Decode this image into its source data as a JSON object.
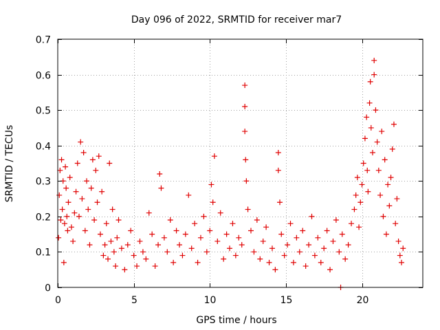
{
  "chart_data": {
    "type": "scatter",
    "title": "Day 096 of 2022, SRMTID for receiver mar7",
    "xlabel": "GPS time / hours",
    "ylabel": "SRMTID / TECUs",
    "xlim": [
      0,
      24
    ],
    "ylim": [
      0,
      0.7
    ],
    "grid": true,
    "xticks": [
      0,
      5,
      10,
      15,
      20
    ],
    "xtick_labels": [
      "0",
      "5",
      "10",
      "15",
      "20"
    ],
    "yticks": [
      0,
      0.1,
      0.2,
      0.3,
      0.4,
      0.5,
      0.6,
      0.7
    ],
    "ytick_labels": [
      "0",
      "0.1",
      "0.2",
      "0.3",
      "0.4",
      "0.5",
      "0.6",
      "0.7"
    ],
    "marker": "plus",
    "series": [
      {
        "name": "SRMTID",
        "color": "#e00000",
        "points": [
          [
            0.05,
            0.14
          ],
          [
            0.1,
            0.26
          ],
          [
            0.15,
            0.33
          ],
          [
            0.2,
            0.19
          ],
          [
            0.25,
            0.36
          ],
          [
            0.3,
            0.22
          ],
          [
            0.35,
            0.3
          ],
          [
            0.4,
            0.07
          ],
          [
            0.45,
            0.18
          ],
          [
            0.5,
            0.34
          ],
          [
            0.55,
            0.28
          ],
          [
            0.6,
            0.2
          ],
          [
            0.65,
            0.16
          ],
          [
            0.7,
            0.24
          ],
          [
            0.8,
            0.31
          ],
          [
            0.9,
            0.17
          ],
          [
            1.0,
            0.13
          ],
          [
            1.1,
            0.21
          ],
          [
            1.2,
            0.27
          ],
          [
            1.3,
            0.35
          ],
          [
            1.4,
            0.2
          ],
          [
            1.5,
            0.41
          ],
          [
            1.6,
            0.25
          ],
          [
            1.7,
            0.38
          ],
          [
            1.8,
            0.16
          ],
          [
            1.9,
            0.3
          ],
          [
            2.0,
            0.22
          ],
          [
            2.1,
            0.12
          ],
          [
            2.2,
            0.28
          ],
          [
            2.3,
            0.36
          ],
          [
            2.4,
            0.19
          ],
          [
            2.5,
            0.33
          ],
          [
            2.6,
            0.24
          ],
          [
            2.7,
            0.37
          ],
          [
            2.8,
            0.15
          ],
          [
            2.9,
            0.27
          ],
          [
            3.0,
            0.09
          ],
          [
            3.1,
            0.12
          ],
          [
            3.2,
            0.18
          ],
          [
            3.3,
            0.08
          ],
          [
            3.4,
            0.35
          ],
          [
            3.5,
            0.13
          ],
          [
            3.6,
            0.22
          ],
          [
            3.7,
            0.1
          ],
          [
            3.8,
            0.06
          ],
          [
            3.9,
            0.14
          ],
          [
            4.0,
            0.19
          ],
          [
            4.2,
            0.11
          ],
          [
            4.4,
            0.05
          ],
          [
            4.6,
            0.12
          ],
          [
            4.8,
            0.16
          ],
          [
            5.0,
            0.09
          ],
          [
            5.2,
            0.06
          ],
          [
            5.4,
            0.13
          ],
          [
            5.6,
            0.1
          ],
          [
            5.8,
            0.08
          ],
          [
            6.0,
            0.21
          ],
          [
            6.2,
            0.15
          ],
          [
            6.4,
            0.06
          ],
          [
            6.6,
            0.12
          ],
          [
            6.7,
            0.32
          ],
          [
            6.8,
            0.28
          ],
          [
            7.0,
            0.14
          ],
          [
            7.2,
            0.1
          ],
          [
            7.4,
            0.19
          ],
          [
            7.6,
            0.07
          ],
          [
            7.8,
            0.16
          ],
          [
            8.0,
            0.12
          ],
          [
            8.2,
            0.09
          ],
          [
            8.4,
            0.15
          ],
          [
            8.6,
            0.26
          ],
          [
            8.8,
            0.11
          ],
          [
            9.0,
            0.18
          ],
          [
            9.2,
            0.07
          ],
          [
            9.4,
            0.14
          ],
          [
            9.6,
            0.2
          ],
          [
            9.8,
            0.1
          ],
          [
            10.0,
            0.16
          ],
          [
            10.1,
            0.29
          ],
          [
            10.2,
            0.24
          ],
          [
            10.3,
            0.37
          ],
          [
            10.5,
            0.13
          ],
          [
            10.7,
            0.21
          ],
          [
            10.9,
            0.08
          ],
          [
            11.1,
            0.15
          ],
          [
            11.3,
            0.11
          ],
          [
            11.5,
            0.18
          ],
          [
            11.7,
            0.09
          ],
          [
            11.9,
            0.14
          ],
          [
            12.1,
            0.12
          ],
          [
            12.3,
            0.57
          ],
          [
            12.3,
            0.51
          ],
          [
            12.3,
            0.44
          ],
          [
            12.35,
            0.36
          ],
          [
            12.4,
            0.3
          ],
          [
            12.5,
            0.22
          ],
          [
            12.7,
            0.16
          ],
          [
            12.9,
            0.1
          ],
          [
            13.1,
            0.19
          ],
          [
            13.3,
            0.08
          ],
          [
            13.5,
            0.13
          ],
          [
            13.7,
            0.17
          ],
          [
            13.9,
            0.07
          ],
          [
            14.1,
            0.11
          ],
          [
            14.3,
            0.05
          ],
          [
            14.5,
            0.38
          ],
          [
            14.5,
            0.33
          ],
          [
            14.6,
            0.24
          ],
          [
            14.7,
            0.15
          ],
          [
            14.9,
            0.09
          ],
          [
            15.1,
            0.12
          ],
          [
            15.3,
            0.18
          ],
          [
            15.5,
            0.07
          ],
          [
            15.7,
            0.14
          ],
          [
            15.9,
            0.1
          ],
          [
            16.1,
            0.16
          ],
          [
            16.3,
            0.06
          ],
          [
            16.5,
            0.12
          ],
          [
            16.7,
            0.2
          ],
          [
            16.9,
            0.09
          ],
          [
            17.1,
            0.14
          ],
          [
            17.3,
            0.07
          ],
          [
            17.5,
            0.11
          ],
          [
            17.7,
            0.16
          ],
          [
            17.9,
            0.05
          ],
          [
            18.1,
            0.13
          ],
          [
            18.3,
            0.19
          ],
          [
            18.5,
            0.1
          ],
          [
            18.6,
            0.0
          ],
          [
            18.7,
            0.15
          ],
          [
            18.9,
            0.08
          ],
          [
            19.1,
            0.12
          ],
          [
            19.3,
            0.18
          ],
          [
            19.5,
            0.22
          ],
          [
            19.6,
            0.26
          ],
          [
            19.7,
            0.31
          ],
          [
            19.8,
            0.17
          ],
          [
            19.9,
            0.24
          ],
          [
            20.0,
            0.29
          ],
          [
            20.1,
            0.35
          ],
          [
            20.2,
            0.42
          ],
          [
            20.3,
            0.48
          ],
          [
            20.35,
            0.33
          ],
          [
            20.4,
            0.27
          ],
          [
            20.5,
            0.52
          ],
          [
            20.55,
            0.58
          ],
          [
            20.6,
            0.45
          ],
          [
            20.7,
            0.38
          ],
          [
            20.8,
            0.64
          ],
          [
            20.8,
            0.6
          ],
          [
            20.9,
            0.5
          ],
          [
            21.0,
            0.41
          ],
          [
            21.1,
            0.33
          ],
          [
            21.2,
            0.26
          ],
          [
            21.3,
            0.44
          ],
          [
            21.4,
            0.2
          ],
          [
            21.5,
            0.36
          ],
          [
            21.6,
            0.15
          ],
          [
            21.7,
            0.29
          ],
          [
            21.8,
            0.23
          ],
          [
            21.9,
            0.31
          ],
          [
            22.0,
            0.39
          ],
          [
            22.1,
            0.46
          ],
          [
            22.2,
            0.18
          ],
          [
            22.3,
            0.25
          ],
          [
            22.4,
            0.13
          ],
          [
            22.5,
            0.09
          ],
          [
            22.6,
            0.07
          ],
          [
            22.7,
            0.11
          ]
        ]
      }
    ]
  }
}
